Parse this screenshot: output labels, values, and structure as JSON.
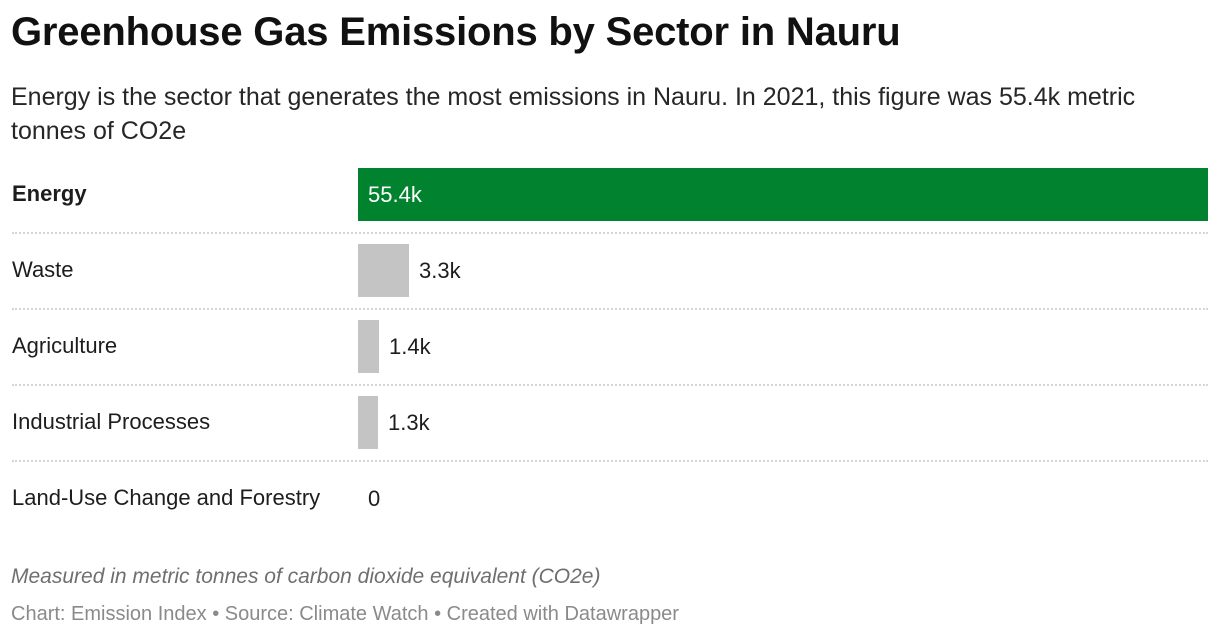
{
  "header": {
    "title": "Greenhouse Gas Emissions by Sector in Nauru",
    "subtitle": "Energy is the sector that generates the most emissions in Nauru. In 2021, this figure was 55.4k metric tonnes of CO2e"
  },
  "notes": {
    "measure": "Measured in metric tonnes of carbon dioxide equivalent (CO2e)",
    "credits": "Chart: Emission Index • Source: Climate Watch • Created with Datawrapper"
  },
  "colors": {
    "highlight": "#00822f",
    "default_bar": "#c4c4c4"
  },
  "chart_data": {
    "type": "bar",
    "orientation": "horizontal",
    "title": "Greenhouse Gas Emissions by Sector in Nauru",
    "categories": [
      "Energy",
      "Waste",
      "Agriculture",
      "Industrial Processes",
      "Land-Use Change and Forestry"
    ],
    "values": [
      55400,
      3300,
      1400,
      1300,
      0
    ],
    "value_labels": [
      "55.4k",
      "3.3k",
      "1.4k",
      "1.3k",
      "0"
    ],
    "highlighted": "Energy",
    "xlim": [
      0,
      55400
    ],
    "grid": false,
    "legend": "none"
  }
}
